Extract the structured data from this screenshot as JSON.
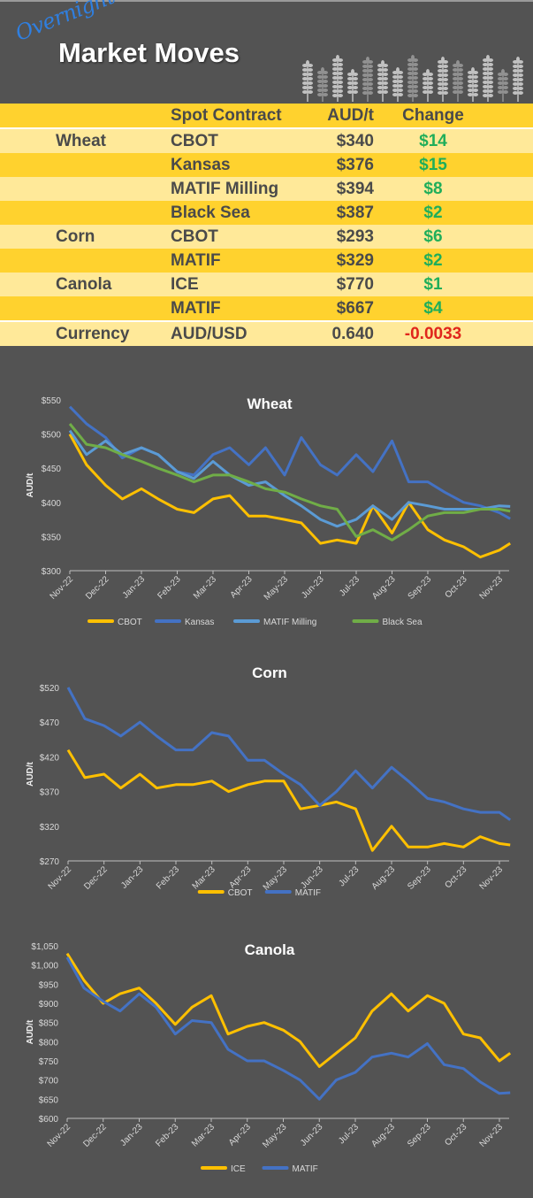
{
  "header": {
    "script_word": "Overnight",
    "title": "Market Moves",
    "icon": "wheat-stalks-icon"
  },
  "table": {
    "headers": {
      "category": "",
      "contract": "Spot Contract",
      "price": "AUD/t",
      "change": "Change"
    },
    "rows": [
      {
        "category": "Wheat",
        "contract": "CBOT",
        "price": "$340",
        "change": "$14",
        "direction": "up"
      },
      {
        "category": "",
        "contract": "Kansas",
        "price": "$376",
        "change": "$15",
        "direction": "up"
      },
      {
        "category": "",
        "contract": "MATIF Milling",
        "price": "$394",
        "change": "$8",
        "direction": "up"
      },
      {
        "category": "",
        "contract": "Black Sea",
        "price": "$387",
        "change": "$2",
        "direction": "up"
      },
      {
        "category": "Corn",
        "contract": "CBOT",
        "price": "$293",
        "change": "$6",
        "direction": "up"
      },
      {
        "category": "",
        "contract": "MATIF",
        "price": "$329",
        "change": "$2",
        "direction": "up"
      },
      {
        "category": "Canola",
        "contract": "ICE",
        "price": "$770",
        "change": "$1",
        "direction": "up"
      },
      {
        "category": "",
        "contract": "MATIF",
        "price": "$667",
        "change": "$4",
        "direction": "up"
      }
    ],
    "currency": {
      "category": "Currency",
      "contract": "AUD/USD",
      "price": "0.640",
      "change": "-0.0033",
      "direction": "down"
    },
    "colors": {
      "row_dark": "#FFD22E",
      "row_light": "#FFE999",
      "positive": "#1fae5a",
      "negative": "#e0261c"
    }
  },
  "chart_data": [
    {
      "type": "line",
      "title": "Wheat",
      "xlabel": "",
      "ylabel": "AUD/t",
      "ylim": [
        300,
        550
      ],
      "yticks": [
        "$300",
        "$350",
        "$400",
        "$450",
        "$500",
        "$550"
      ],
      "xticks": [
        "Nov-22",
        "Dec-22",
        "Jan-23",
        "Feb-23",
        "Mar-23",
        "Apr-23",
        "May-23",
        "Jun-23",
        "Jul-23",
        "Aug-23",
        "Sep-23",
        "Oct-23",
        "Nov-23"
      ],
      "grid": false,
      "legend": "bottom",
      "x": [
        "2022-11-01",
        "2022-11-15",
        "2022-12-01",
        "2022-12-15",
        "2023-01-01",
        "2023-01-15",
        "2023-02-01",
        "2023-02-15",
        "2023-03-01",
        "2023-03-15",
        "2023-04-01",
        "2023-04-15",
        "2023-05-01",
        "2023-05-15",
        "2023-06-01",
        "2023-06-15",
        "2023-07-01",
        "2023-07-15",
        "2023-08-01",
        "2023-08-15",
        "2023-09-01",
        "2023-09-15",
        "2023-10-01",
        "2023-10-15",
        "2023-11-01",
        "2023-11-10"
      ],
      "series": [
        {
          "name": "CBOT",
          "color": "#FFC000",
          "values": [
            500,
            455,
            425,
            405,
            420,
            405,
            390,
            385,
            405,
            410,
            380,
            380,
            375,
            370,
            340,
            345,
            340,
            395,
            355,
            400,
            360,
            345,
            335,
            320,
            330,
            340
          ]
        },
        {
          "name": "Kansas",
          "color": "#4472C4",
          "values": [
            540,
            515,
            495,
            465,
            480,
            470,
            445,
            440,
            470,
            480,
            455,
            480,
            440,
            495,
            455,
            440,
            470,
            445,
            490,
            430,
            430,
            415,
            400,
            395,
            385,
            376
          ]
        },
        {
          "name": "MATIF Milling",
          "color": "#5B9BD5",
          "values": [
            505,
            470,
            490,
            470,
            480,
            470,
            445,
            435,
            460,
            440,
            425,
            430,
            410,
            395,
            375,
            365,
            375,
            395,
            375,
            400,
            395,
            390,
            390,
            390,
            395,
            394
          ]
        },
        {
          "name": "Black Sea",
          "color": "#70AD47",
          "values": [
            515,
            485,
            480,
            470,
            460,
            450,
            440,
            430,
            440,
            440,
            430,
            420,
            415,
            405,
            395,
            390,
            350,
            360,
            345,
            360,
            380,
            385,
            385,
            390,
            390,
            387
          ]
        }
      ]
    },
    {
      "type": "line",
      "title": "Corn",
      "xlabel": "",
      "ylabel": "AUD/t",
      "ylim": [
        270,
        520
      ],
      "yticks": [
        "$270",
        "$320",
        "$370",
        "$420",
        "$470",
        "$520"
      ],
      "xticks": [
        "Nov-22",
        "Dec-22",
        "Jan-23",
        "Feb-23",
        "Mar-23",
        "Apr-23",
        "May-23",
        "Jun-23",
        "Jul-23",
        "Aug-23",
        "Sep-23",
        "Oct-23",
        "Nov-23"
      ],
      "grid": false,
      "legend": "bottom",
      "x": [
        "2022-11-01",
        "2022-11-15",
        "2022-12-01",
        "2022-12-15",
        "2023-01-01",
        "2023-01-15",
        "2023-02-01",
        "2023-02-15",
        "2023-03-01",
        "2023-03-15",
        "2023-04-01",
        "2023-04-15",
        "2023-05-01",
        "2023-05-15",
        "2023-06-01",
        "2023-06-15",
        "2023-07-01",
        "2023-07-15",
        "2023-08-01",
        "2023-08-15",
        "2023-09-01",
        "2023-09-15",
        "2023-10-01",
        "2023-10-15",
        "2023-11-01",
        "2023-11-10"
      ],
      "series": [
        {
          "name": "CBOT",
          "color": "#FFC000",
          "values": [
            430,
            390,
            395,
            375,
            395,
            375,
            380,
            380,
            385,
            370,
            380,
            385,
            385,
            345,
            350,
            355,
            345,
            285,
            320,
            290,
            290,
            295,
            290,
            305,
            295,
            293
          ]
        },
        {
          "name": "MATIF",
          "color": "#4472C4",
          "values": [
            520,
            475,
            465,
            450,
            470,
            450,
            430,
            430,
            455,
            450,
            415,
            415,
            395,
            380,
            350,
            370,
            400,
            375,
            405,
            385,
            360,
            355,
            345,
            340,
            340,
            329
          ]
        }
      ]
    },
    {
      "type": "line",
      "title": "Canola",
      "xlabel": "",
      "ylabel": "AUD/t",
      "ylim": [
        600,
        1050
      ],
      "yticks": [
        "$600",
        "$650",
        "$700",
        "$750",
        "$800",
        "$850",
        "$900",
        "$950",
        "$1,000",
        "$1,050"
      ],
      "xticks": [
        "Nov-22",
        "Dec-22",
        "Jan-23",
        "Feb-23",
        "Mar-23",
        "Apr-23",
        "May-23",
        "Jun-23",
        "Jul-23",
        "Aug-23",
        "Sep-23",
        "Oct-23",
        "Nov-23"
      ],
      "grid": false,
      "legend": "bottom",
      "x": [
        "2022-11-01",
        "2022-11-15",
        "2022-12-01",
        "2022-12-15",
        "2023-01-01",
        "2023-01-15",
        "2023-02-01",
        "2023-02-15",
        "2023-03-01",
        "2023-03-15",
        "2023-04-01",
        "2023-04-15",
        "2023-05-01",
        "2023-05-15",
        "2023-06-01",
        "2023-06-15",
        "2023-07-01",
        "2023-07-15",
        "2023-08-01",
        "2023-08-15",
        "2023-09-01",
        "2023-09-15",
        "2023-10-01",
        "2023-10-15",
        "2023-11-01",
        "2023-11-10"
      ],
      "series": [
        {
          "name": "ICE",
          "color": "#FFC000",
          "values": [
            1030,
            960,
            900,
            925,
            940,
            900,
            845,
            890,
            920,
            820,
            840,
            850,
            830,
            800,
            735,
            770,
            810,
            880,
            925,
            880,
            920,
            900,
            820,
            810,
            750,
            770
          ]
        },
        {
          "name": "MATIF",
          "color": "#4472C4",
          "values": [
            1020,
            940,
            905,
            880,
            925,
            890,
            820,
            855,
            850,
            780,
            750,
            750,
            725,
            700,
            650,
            700,
            720,
            760,
            770,
            760,
            795,
            740,
            730,
            695,
            665,
            667
          ]
        }
      ]
    }
  ]
}
